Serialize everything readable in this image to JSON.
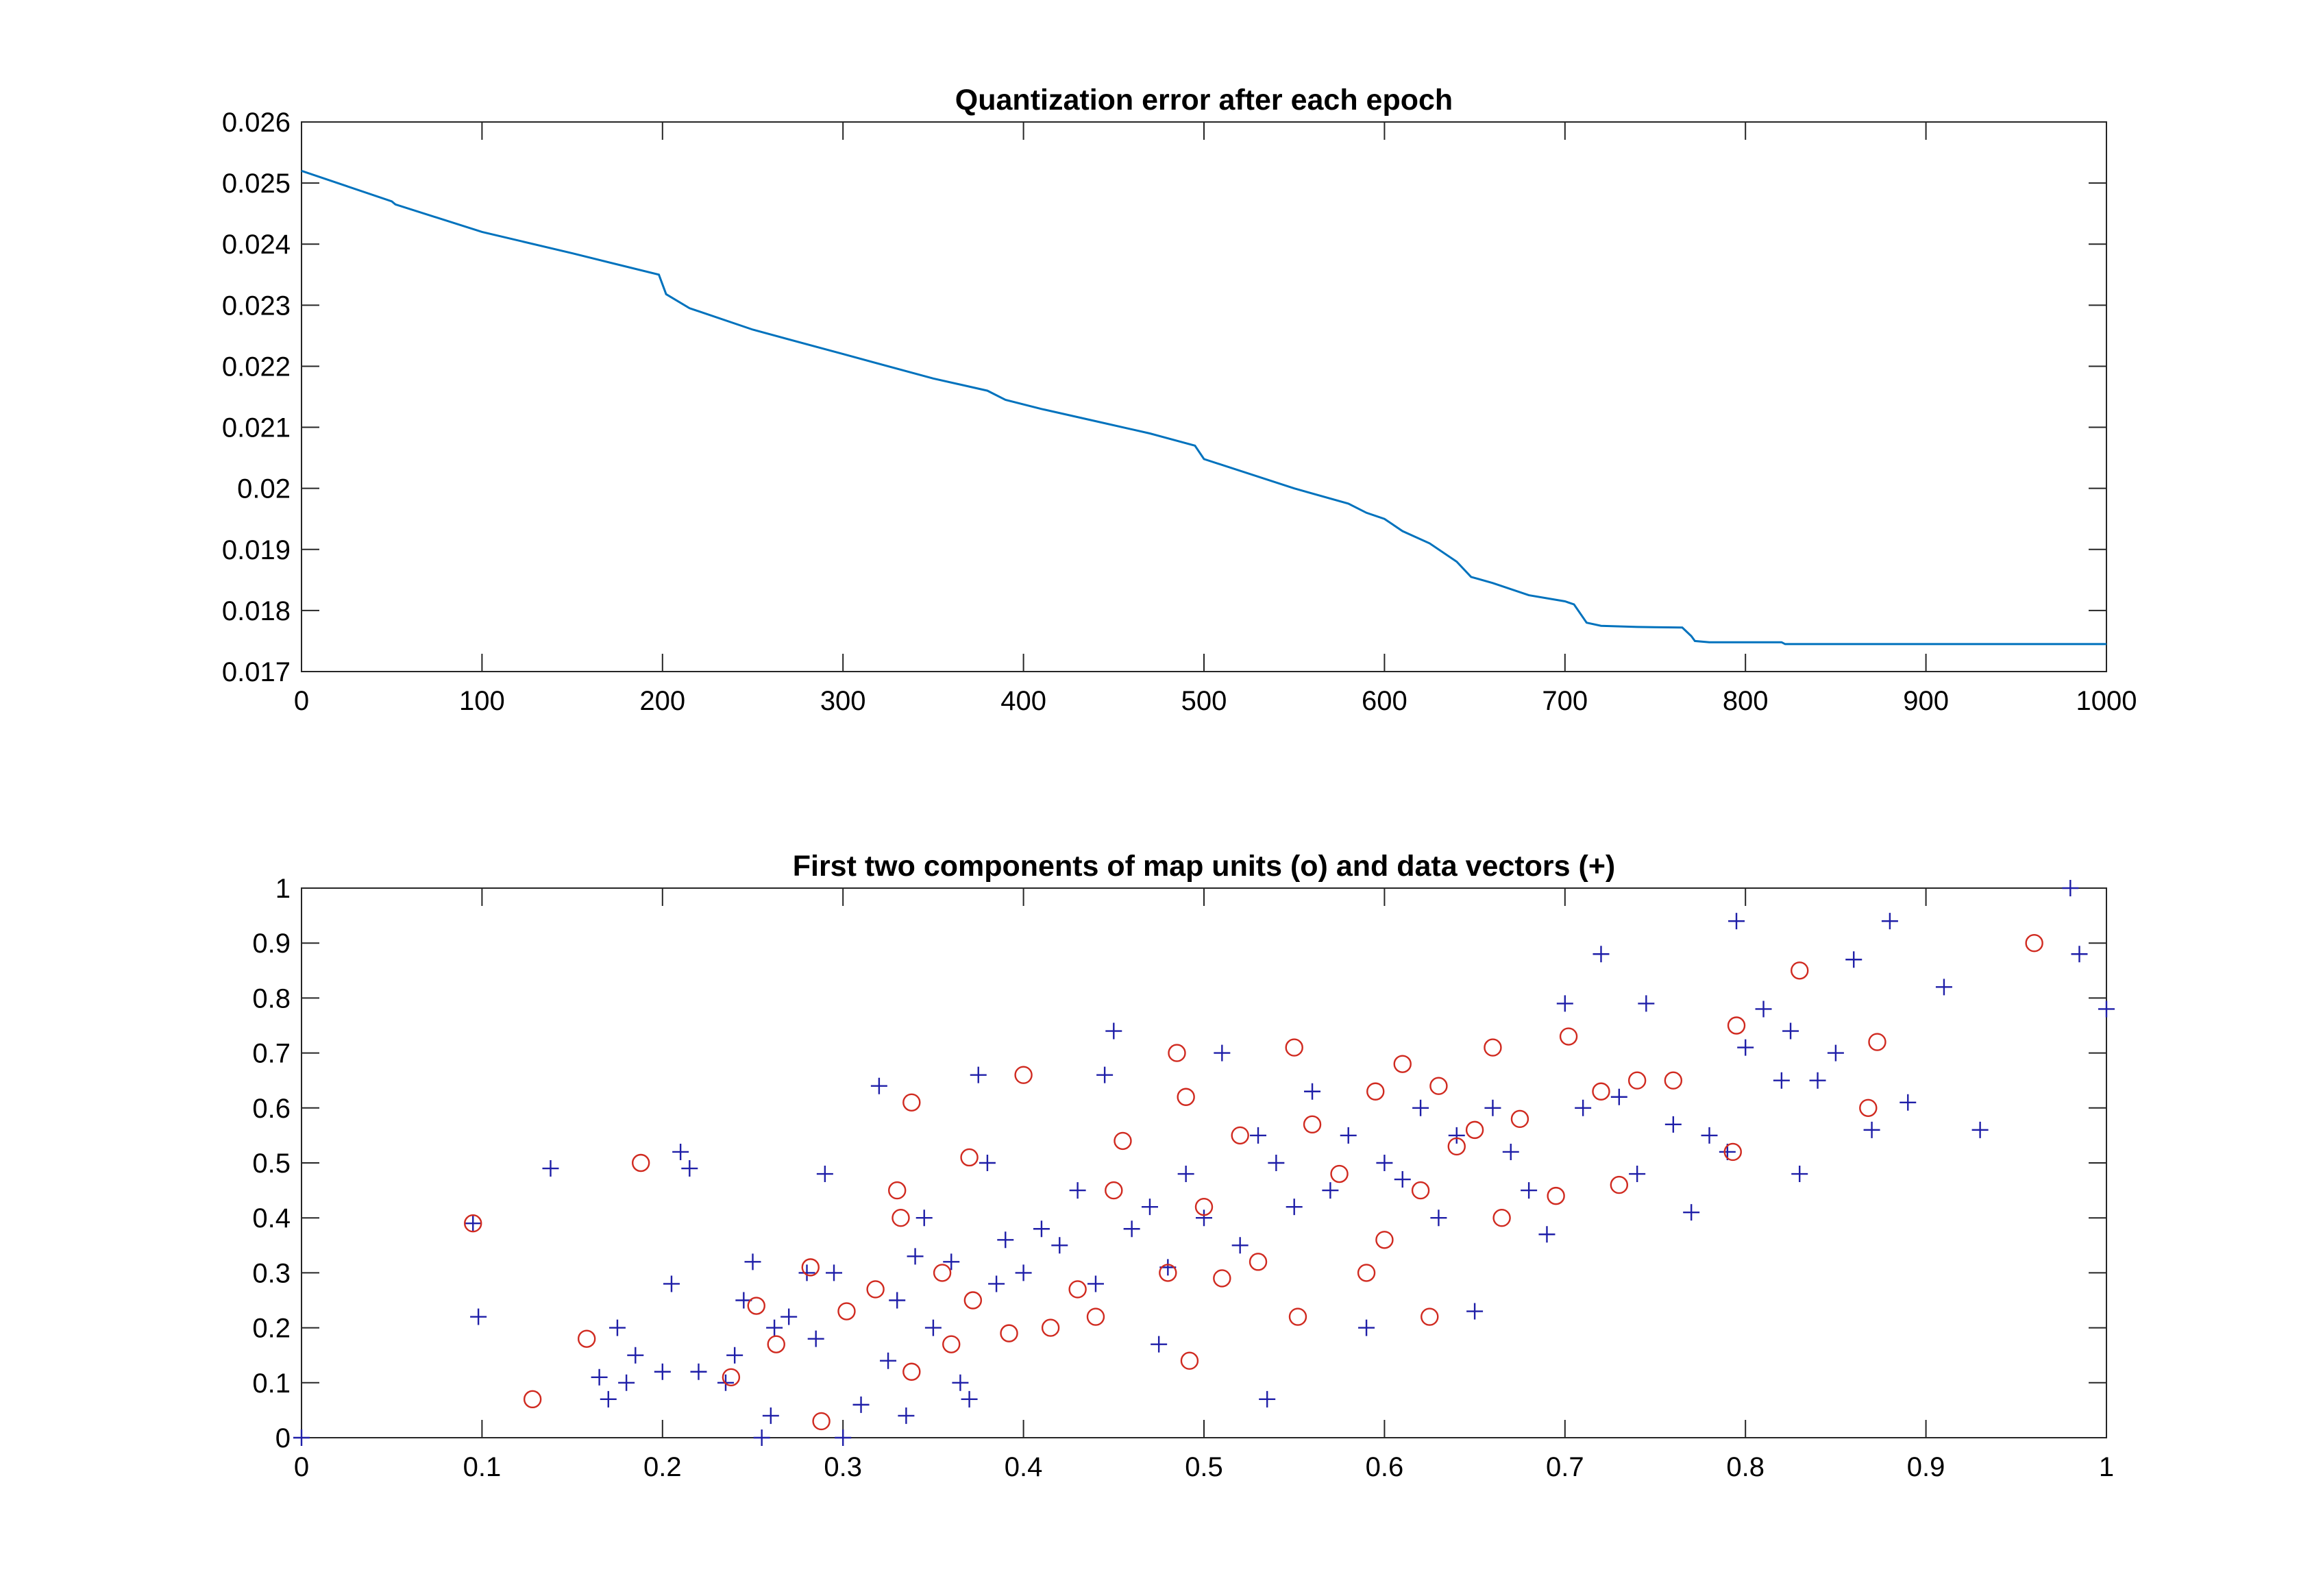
{
  "chart_data": [
    {
      "type": "line",
      "title": "Quantization error after each epoch",
      "xlabel": "",
      "ylabel": "",
      "xlim": [
        0,
        1000
      ],
      "ylim": [
        0.017,
        0.026
      ],
      "xticks": [
        0,
        100,
        200,
        300,
        400,
        500,
        600,
        700,
        800,
        900,
        1000
      ],
      "xtick_labels": [
        "0",
        "100",
        "200",
        "300",
        "400",
        "500",
        "600",
        "700",
        "800",
        "900",
        "1000"
      ],
      "yticks": [
        0.017,
        0.018,
        0.019,
        0.02,
        0.021,
        0.022,
        0.023,
        0.024,
        0.025,
        0.026
      ],
      "ytick_labels": [
        "0.017",
        "0.018",
        "0.019",
        "0.02",
        "0.021",
        "0.022",
        "0.023",
        "0.024",
        "0.025",
        "0.026"
      ],
      "grid": false,
      "series": [
        {
          "color": "#0072bd",
          "x": [
            0,
            25,
            50,
            52,
            100,
            150,
            198,
            202,
            215,
            220,
            250,
            300,
            350,
            380,
            390,
            410,
            440,
            470,
            495,
            500,
            550,
            580,
            590,
            600,
            610,
            625,
            640,
            648,
            660,
            680,
            700,
            705,
            712,
            720,
            740,
            765,
            770,
            772,
            780,
            820,
            822,
            900,
            1000
          ],
          "y": [
            0.0252,
            0.02495,
            0.0247,
            0.02465,
            0.0242,
            0.02385,
            0.0235,
            0.02318,
            0.02295,
            0.0229,
            0.0226,
            0.0222,
            0.0218,
            0.0216,
            0.02145,
            0.0213,
            0.0211,
            0.0209,
            0.0207,
            0.02048,
            0.02,
            0.01975,
            0.0196,
            0.0195,
            0.0193,
            0.0191,
            0.0188,
            0.01855,
            0.01845,
            0.01825,
            0.01815,
            0.0181,
            0.0178,
            0.01775,
            0.01773,
            0.01772,
            0.01758,
            0.0175,
            0.01748,
            0.01748,
            0.01745,
            0.01745,
            0.01745
          ]
        }
      ]
    },
    {
      "type": "scatter",
      "title": "First two components of map units (o) and data vectors (+)",
      "xlabel": "",
      "ylabel": "",
      "xlim": [
        0,
        1
      ],
      "ylim": [
        0,
        1
      ],
      "xticks": [
        0,
        0.1,
        0.2,
        0.3,
        0.4,
        0.5,
        0.6,
        0.7,
        0.8,
        0.9,
        1
      ],
      "xtick_labels": [
        "0",
        "0.1",
        "0.2",
        "0.3",
        "0.4",
        "0.5",
        "0.6",
        "0.7",
        "0.8",
        "0.9",
        "1"
      ],
      "yticks": [
        0,
        0.1,
        0.2,
        0.3,
        0.4,
        0.5,
        0.6,
        0.7,
        0.8,
        0.9,
        1
      ],
      "ytick_labels": [
        "0",
        "0.1",
        "0.2",
        "0.3",
        "0.4",
        "0.5",
        "0.6",
        "0.7",
        "0.8",
        "0.9",
        "1"
      ],
      "grid": false,
      "series": [
        {
          "marker": "+",
          "color": "#1f1fa8",
          "x": [
            0.0,
            0.095,
            0.098,
            0.138,
            0.165,
            0.17,
            0.175,
            0.18,
            0.185,
            0.2,
            0.205,
            0.21,
            0.215,
            0.22,
            0.235,
            0.24,
            0.245,
            0.25,
            0.255,
            0.26,
            0.262,
            0.27,
            0.28,
            0.285,
            0.29,
            0.295,
            0.3,
            0.31,
            0.32,
            0.325,
            0.33,
            0.335,
            0.34,
            0.345,
            0.35,
            0.36,
            0.365,
            0.37,
            0.375,
            0.38,
            0.385,
            0.39,
            0.4,
            0.41,
            0.42,
            0.43,
            0.44,
            0.445,
            0.45,
            0.46,
            0.47,
            0.475,
            0.48,
            0.49,
            0.5,
            0.51,
            0.52,
            0.53,
            0.535,
            0.54,
            0.55,
            0.56,
            0.57,
            0.58,
            0.59,
            0.6,
            0.61,
            0.62,
            0.63,
            0.64,
            0.65,
            0.66,
            0.67,
            0.68,
            0.69,
            0.7,
            0.71,
            0.72,
            0.73,
            0.74,
            0.745,
            0.76,
            0.77,
            0.78,
            0.79,
            0.795,
            0.8,
            0.81,
            0.82,
            0.825,
            0.83,
            0.84,
            0.85,
            0.86,
            0.87,
            0.88,
            0.89,
            0.91,
            0.93,
            0.98,
            0.985,
            1.0
          ],
          "y": [
            0.0,
            0.39,
            0.22,
            0.49,
            0.11,
            0.07,
            0.2,
            0.1,
            0.15,
            0.12,
            0.28,
            0.52,
            0.49,
            0.12,
            0.1,
            0.15,
            0.25,
            0.32,
            0.0,
            0.04,
            0.2,
            0.22,
            0.3,
            0.18,
            0.48,
            0.3,
            0.0,
            0.06,
            0.64,
            0.14,
            0.25,
            0.04,
            0.33,
            0.4,
            0.2,
            0.32,
            0.1,
            0.07,
            0.66,
            0.5,
            0.28,
            0.36,
            0.3,
            0.38,
            0.35,
            0.45,
            0.28,
            0.66,
            0.74,
            0.38,
            0.42,
            0.17,
            0.31,
            0.48,
            0.4,
            0.7,
            0.35,
            0.55,
            0.07,
            0.5,
            0.42,
            0.63,
            0.45,
            0.55,
            0.2,
            0.5,
            0.47,
            0.6,
            0.4,
            0.55,
            0.23,
            0.6,
            0.52,
            0.45,
            0.37,
            0.79,
            0.6,
            0.88,
            0.62,
            0.48,
            0.79,
            0.57,
            0.41,
            0.55,
            0.52,
            0.94,
            0.71,
            0.78,
            0.65,
            0.74,
            0.48,
            0.65,
            0.7,
            0.87,
            0.56,
            0.94,
            0.61,
            0.82,
            0.56,
            1.0,
            0.88,
            0.78
          ]
        },
        {
          "marker": "o",
          "color": "#d02a20",
          "x": [
            0.095,
            0.128,
            0.158,
            0.188,
            0.238,
            0.252,
            0.263,
            0.282,
            0.288,
            0.302,
            0.318,
            0.33,
            0.332,
            0.338,
            0.338,
            0.355,
            0.36,
            0.37,
            0.372,
            0.392,
            0.4,
            0.415,
            0.43,
            0.44,
            0.45,
            0.455,
            0.48,
            0.485,
            0.49,
            0.492,
            0.5,
            0.51,
            0.52,
            0.53,
            0.55,
            0.552,
            0.56,
            0.575,
            0.59,
            0.595,
            0.6,
            0.61,
            0.62,
            0.625,
            0.63,
            0.64,
            0.65,
            0.66,
            0.665,
            0.675,
            0.695,
            0.702,
            0.72,
            0.73,
            0.74,
            0.76,
            0.793,
            0.795,
            0.83,
            0.868,
            0.873,
            0.96
          ],
          "y": [
            0.39,
            0.07,
            0.18,
            0.5,
            0.11,
            0.24,
            0.17,
            0.31,
            0.03,
            0.23,
            0.27,
            0.45,
            0.4,
            0.61,
            0.12,
            0.3,
            0.17,
            0.51,
            0.25,
            0.19,
            0.66,
            0.2,
            0.27,
            0.22,
            0.45,
            0.54,
            0.3,
            0.7,
            0.62,
            0.14,
            0.42,
            0.29,
            0.55,
            0.32,
            0.71,
            0.22,
            0.57,
            0.48,
            0.3,
            0.63,
            0.36,
            0.68,
            0.45,
            0.22,
            0.64,
            0.53,
            0.56,
            0.71,
            0.4,
            0.58,
            0.44,
            0.73,
            0.63,
            0.46,
            0.65,
            0.65,
            0.52,
            0.75,
            0.85,
            0.6,
            0.72,
            0.9
          ]
        }
      ]
    }
  ]
}
